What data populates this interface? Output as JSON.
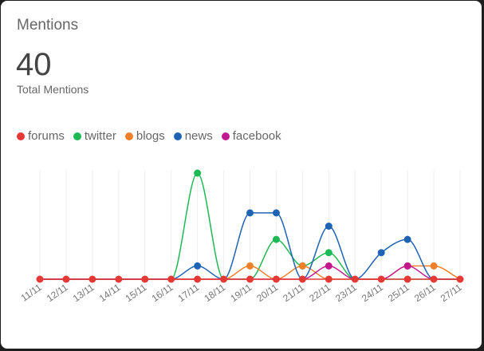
{
  "card": {
    "title": "Mentions",
    "total": "40",
    "total_label": "Total Mentions"
  },
  "chart_data": {
    "type": "line",
    "categories": [
      "11/11",
      "12/11",
      "13/11",
      "14/11",
      "15/11",
      "16/11",
      "17/11",
      "18/11",
      "19/11",
      "20/11",
      "21/11",
      "22/11",
      "23/11",
      "24/11",
      "25/11",
      "26/11",
      "27/11"
    ],
    "ylim": [
      0,
      8
    ],
    "grid": "vertical",
    "legend_position": "top-left",
    "series": [
      {
        "name": "forums",
        "color": "#e53935",
        "values": [
          0,
          0,
          0,
          0,
          0,
          0,
          0,
          0,
          0,
          0,
          0,
          0,
          0,
          0,
          0,
          0,
          0
        ]
      },
      {
        "name": "twitter",
        "color": "#1db954",
        "values": [
          0,
          0,
          0,
          0,
          0,
          0,
          8,
          0,
          0,
          3,
          1,
          2,
          0,
          0,
          0,
          0,
          0
        ]
      },
      {
        "name": "blogs",
        "color": "#f07f2a",
        "values": [
          0,
          0,
          0,
          0,
          0,
          0,
          0,
          0,
          1,
          0,
          1,
          0,
          0,
          0,
          1,
          1,
          0
        ]
      },
      {
        "name": "news",
        "color": "#1f63b5",
        "values": [
          0,
          0,
          0,
          0,
          0,
          0,
          1,
          0,
          5,
          5,
          0,
          4,
          0,
          2,
          3,
          0,
          0
        ]
      },
      {
        "name": "facebook",
        "color": "#c2188f",
        "values": [
          0,
          0,
          0,
          0,
          0,
          0,
          0,
          0,
          0,
          0,
          0,
          1,
          0,
          0,
          1,
          0,
          0
        ]
      }
    ]
  }
}
